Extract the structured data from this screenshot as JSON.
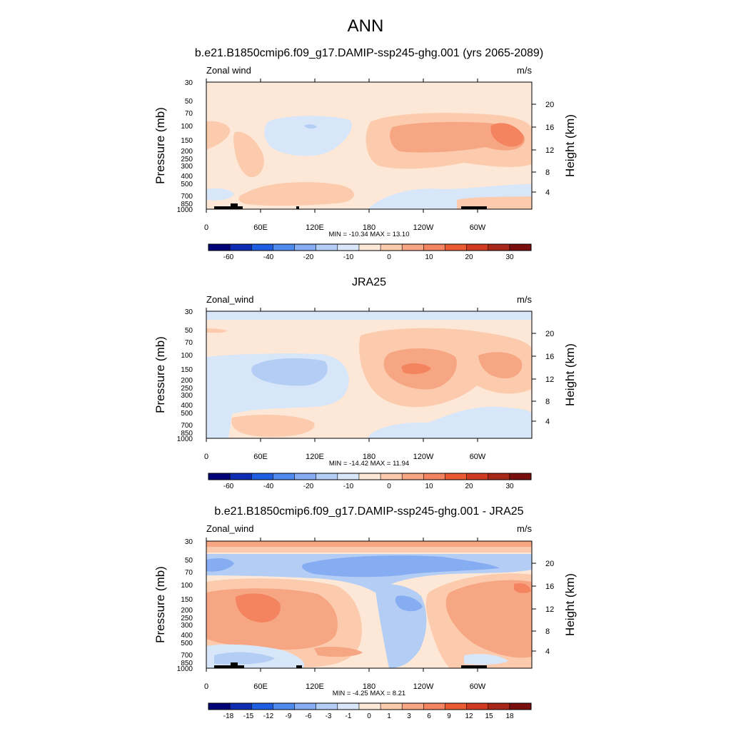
{
  "figure": {
    "title": "ANN"
  },
  "colors": {
    "div": [
      "#00007a",
      "#0f2cb4",
      "#1e5ee0",
      "#4f8af0",
      "#86acf2",
      "#b3cdf5",
      "#d7e6f8",
      "#fde8d8",
      "#fccbae",
      "#f7a683",
      "#f4845f",
      "#ea5b33",
      "#d03b1f",
      "#a82617",
      "#7a0d0d"
    ]
  },
  "chart_data": [
    {
      "type": "heatmap",
      "title": "b.e21.B1850cmip6.f09_g17.DAMIP-ssp245-ghg.001 (yrs 2065-2089)",
      "left_label": "Zonal wind",
      "units": "m/s",
      "ylabel": "Pressure (mb)",
      "ylabel_right": "Height (km)",
      "pressure_ticks": [
        "30",
        "50",
        "70",
        "100",
        "150",
        "200",
        "250",
        "300",
        "400",
        "500",
        "700",
        "850",
        "1000"
      ],
      "height_ticks": [
        "20",
        "16",
        "12",
        "8",
        "4"
      ],
      "x_ticks": [
        "0",
        "60E",
        "120E",
        "180",
        "120W",
        "60W"
      ],
      "stats": "MIN = -10.34  MAX =  13.10",
      "levels": [
        "-60",
        "-40",
        "-20",
        "-10",
        "0",
        "10",
        "20",
        "30"
      ],
      "terrain": true
    },
    {
      "type": "heatmap",
      "title": "JRA25",
      "left_label": "Zonal_wind",
      "units": "m/s",
      "ylabel": "Pressure (mb)",
      "ylabel_right": "Height (km)",
      "pressure_ticks": [
        "30",
        "50",
        "70",
        "100",
        "150",
        "200",
        "250",
        "300",
        "400",
        "500",
        "700",
        "850",
        "1000"
      ],
      "height_ticks": [
        "20",
        "16",
        "12",
        "8",
        "4"
      ],
      "x_ticks": [
        "0",
        "60E",
        "120E",
        "180",
        "120W",
        "60W"
      ],
      "stats": "MIN = -14.42  MAX =  11.94",
      "levels": [
        "-60",
        "-40",
        "-20",
        "-10",
        "0",
        "10",
        "20",
        "30"
      ],
      "terrain": false
    },
    {
      "type": "heatmap",
      "title": "b.e21.B1850cmip6.f09_g17.DAMIP-ssp245-ghg.001 - JRA25",
      "left_label": "Zonal_wind",
      "units": "m/s",
      "ylabel": "Pressure (mb)",
      "ylabel_right": "Height (km)",
      "pressure_ticks": [
        "30",
        "50",
        "70",
        "100",
        "150",
        "200",
        "250",
        "300",
        "400",
        "500",
        "700",
        "850",
        "1000"
      ],
      "height_ticks": [
        "20",
        "16",
        "12",
        "8",
        "4"
      ],
      "x_ticks": [
        "0",
        "60E",
        "120E",
        "180",
        "120W",
        "60W"
      ],
      "stats": "MIN =  -4.25  MAX =   8.21",
      "levels": [
        "-18",
        "-15",
        "-12",
        "-9",
        "-6",
        "-3",
        "-1",
        "0",
        "1",
        "3",
        "6",
        "9",
        "12",
        "15",
        "18"
      ],
      "terrain": true
    }
  ]
}
